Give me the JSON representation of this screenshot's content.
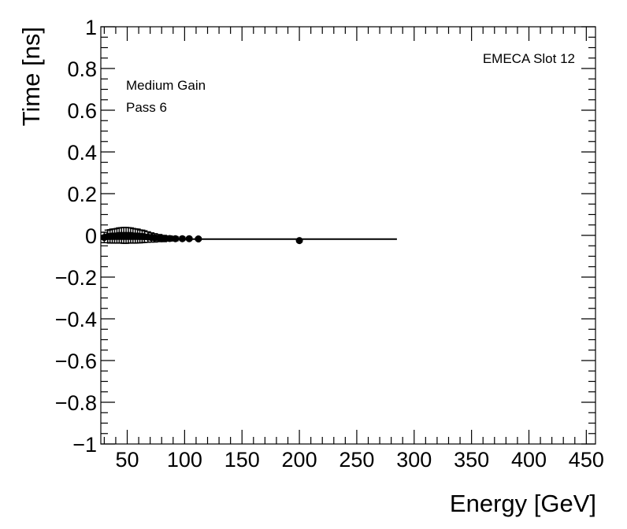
{
  "chart_data": {
    "type": "scatter",
    "title": "",
    "xlabel": "Energy [GeV]",
    "ylabel": "Time [ns]",
    "xlim": [
      27,
      458
    ],
    "ylim": [
      -1,
      1
    ],
    "grid": false,
    "xticks": [
      50,
      100,
      150,
      200,
      250,
      300,
      350,
      400,
      450
    ],
    "xtick_labels": [
      "50",
      "100",
      "150",
      "200",
      "250",
      "300",
      "350",
      "400",
      "450"
    ],
    "yticks": [
      1,
      0.8,
      0.6,
      0.4,
      0.2,
      0,
      -0.2,
      -0.4,
      -0.6,
      -0.8,
      -1
    ],
    "ytick_labels": [
      "1",
      "0.8",
      "0.6",
      "0.4",
      "0.2",
      "0",
      "−0.2",
      "−0.4",
      "−0.6",
      "−0.8",
      "−1"
    ],
    "annotations": {
      "slot": "EMECA Slot 12",
      "gain": "Medium Gain",
      "pass": "Pass 6"
    },
    "series": [
      {
        "marker": "circle",
        "color": "#000000",
        "points": [
          {
            "x": 30,
            "y": -0.01,
            "err": 0.025
          },
          {
            "x": 33,
            "y": -0.005,
            "err": 0.03
          },
          {
            "x": 35,
            "y": -0.005,
            "err": 0.032
          },
          {
            "x": 37,
            "y": -0.003,
            "err": 0.033
          },
          {
            "x": 39,
            "y": -0.003,
            "err": 0.034
          },
          {
            "x": 41,
            "y": -0.002,
            "err": 0.035
          },
          {
            "x": 43,
            "y": 0.0,
            "err": 0.036
          },
          {
            "x": 45,
            "y": 0.0,
            "err": 0.037
          },
          {
            "x": 47,
            "y": 0.0,
            "err": 0.038
          },
          {
            "x": 49,
            "y": 0.0,
            "err": 0.038
          },
          {
            "x": 51,
            "y": 0.0,
            "err": 0.037
          },
          {
            "x": 53,
            "y": 0.0,
            "err": 0.036
          },
          {
            "x": 55,
            "y": -0.002,
            "err": 0.035
          },
          {
            "x": 57,
            "y": -0.003,
            "err": 0.034
          },
          {
            "x": 59,
            "y": -0.003,
            "err": 0.033
          },
          {
            "x": 61,
            "y": -0.005,
            "err": 0.031
          },
          {
            "x": 63,
            "y": -0.005,
            "err": 0.03
          },
          {
            "x": 65,
            "y": -0.006,
            "err": 0.028
          },
          {
            "x": 68,
            "y": -0.008,
            "err": 0.025
          },
          {
            "x": 71,
            "y": -0.01,
            "err": 0.022
          },
          {
            "x": 74,
            "y": -0.012,
            "err": 0.02
          },
          {
            "x": 78,
            "y": -0.013,
            "err": 0.017
          },
          {
            "x": 82,
            "y": -0.015,
            "err": 0.015
          },
          {
            "x": 87,
            "y": -0.015,
            "err": 0.012
          },
          {
            "x": 92,
            "y": -0.016,
            "err": 0.01
          },
          {
            "x": 98,
            "y": -0.016,
            "err": 0.008
          },
          {
            "x": 104,
            "y": -0.016,
            "err": 0.006
          },
          {
            "x": 112,
            "y": -0.017,
            "err": 0.006
          },
          {
            "x": 200,
            "y": -0.025,
            "err": 0.005
          }
        ]
      }
    ],
    "fit_line": {
      "x": [
        27,
        285
      ],
      "y": [
        -0.018,
        -0.018
      ]
    }
  }
}
